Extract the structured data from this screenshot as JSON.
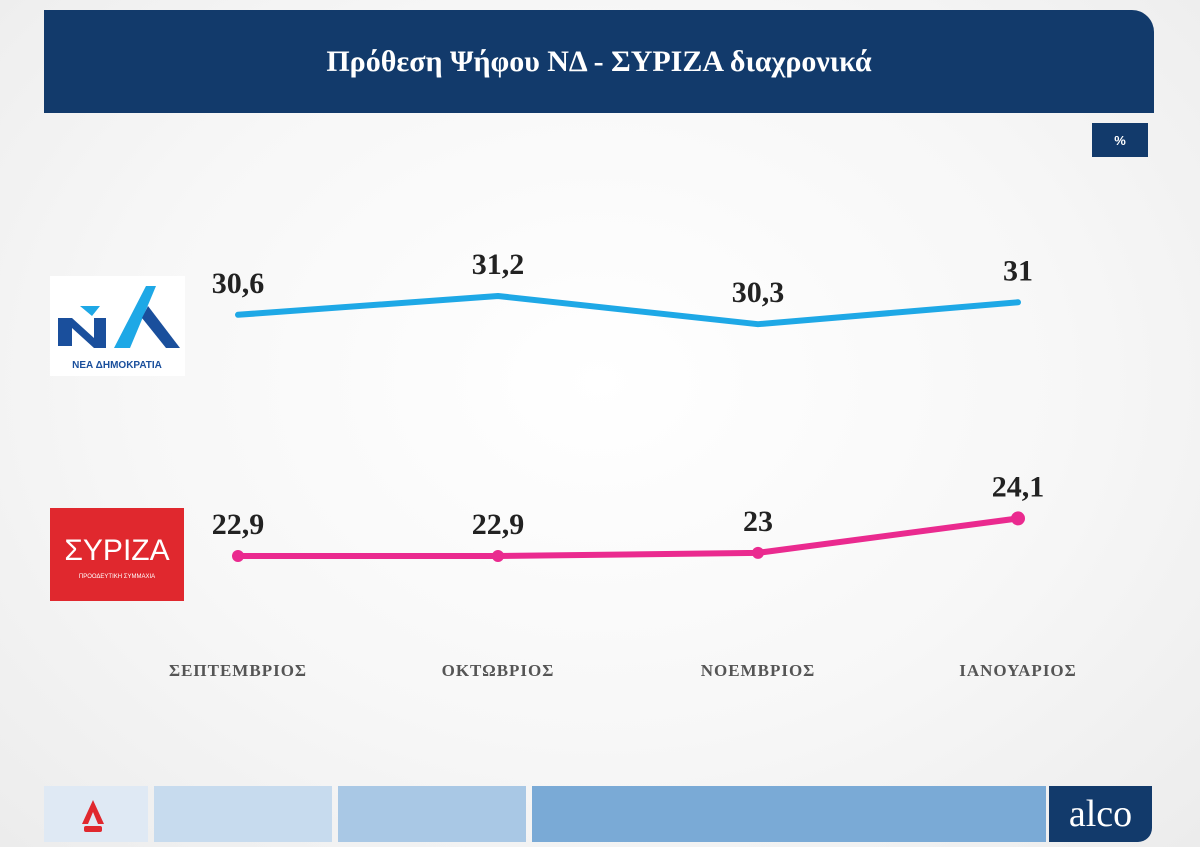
{
  "title": "Πρόθεση Ψήφου ΝΔ  - ΣΥΡΙΖΑ διαχρονικά",
  "unit": "%",
  "logos": {
    "nd": {
      "mark": "ΝΔ",
      "caption": "ΝΕΑ ΔΗΜΟΚΡΑΤΙΑ"
    },
    "syriza": {
      "mark": "ΣΥΡΙΖΑ",
      "caption": "ΠΡΟΟΔΕΥΤΙΚΗ ΣΥΜΜΑΧΙΑ"
    },
    "pollster": "alco"
  },
  "colors": {
    "title_bg": "#123a6b",
    "nd_line": "#1ea8e6",
    "syriza_line": "#ea2a8f",
    "syriza_logo_bg": "#e0282e",
    "tick_label": "#555555",
    "value_label": "#222222"
  },
  "chart_data": {
    "type": "line",
    "categories": [
      "ΣΕΠΤΕΜΒΡΙΟΣ",
      "ΟΚΤΩΒΡΙΟΣ",
      "ΝΟΕΜΒΡΙΟΣ",
      "ΙΑΝΟΥΑΡΙΟΣ"
    ],
    "series": [
      {
        "values": [
          30.6,
          31.2,
          30.3,
          31
        ],
        "labels": [
          "30,6",
          "31,2",
          "30,3",
          "31"
        ],
        "color": "#1ea8e6",
        "markers": false
      },
      {
        "values": [
          22.9,
          22.9,
          23,
          24.1
        ],
        "labels": [
          "22,9",
          "22,9",
          "23",
          "24,1"
        ],
        "color": "#ea2a8f",
        "markers": true
      }
    ],
    "grid": false,
    "legend": "logos-left"
  }
}
